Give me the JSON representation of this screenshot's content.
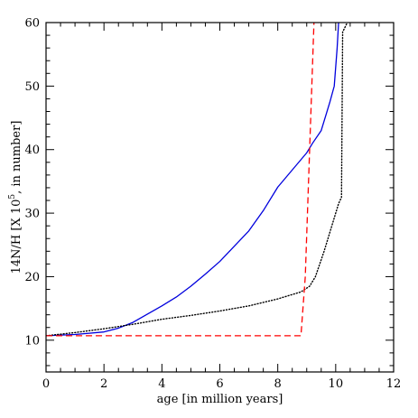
{
  "chart_data": {
    "type": "line",
    "xlabel": "age [in million years]",
    "ylabel": {
      "prefix": "14N/H [X 10",
      "superscript": "5",
      "suffix": ", in number]"
    },
    "xlim": [
      0,
      12
    ],
    "ylim": [
      5,
      60
    ],
    "x_ticks": [
      0,
      2,
      4,
      6,
      8,
      10,
      12
    ],
    "y_ticks": [
      10,
      20,
      30,
      40,
      50,
      60
    ],
    "grid": false,
    "series": [
      {
        "color": "#0000dd",
        "style": "solid",
        "points": [
          [
            0,
            10.7
          ],
          [
            1.0,
            10.9
          ],
          [
            2.0,
            11.3
          ],
          [
            2.5,
            11.9
          ],
          [
            3.0,
            12.8
          ],
          [
            3.5,
            14.1
          ],
          [
            4.0,
            15.4
          ],
          [
            4.5,
            16.8
          ],
          [
            5.0,
            18.5
          ],
          [
            5.5,
            20.4
          ],
          [
            6.0,
            22.4
          ],
          [
            6.5,
            24.8
          ],
          [
            7.0,
            27.2
          ],
          [
            7.5,
            30.4
          ],
          [
            8.0,
            34.1
          ],
          [
            8.5,
            36.8
          ],
          [
            9.0,
            39.5
          ],
          [
            9.2,
            41.0
          ],
          [
            9.5,
            43.0
          ],
          [
            9.8,
            47.5
          ],
          [
            9.95,
            50.0
          ],
          [
            10.05,
            56.0
          ],
          [
            10.1,
            60.0
          ]
        ]
      },
      {
        "color": "#000000",
        "style": "dotted",
        "points": [
          [
            0,
            10.7
          ],
          [
            1.0,
            11.2
          ],
          [
            2.0,
            11.8
          ],
          [
            3.0,
            12.5
          ],
          [
            4.0,
            13.3
          ],
          [
            5.0,
            13.9
          ],
          [
            6.0,
            14.6
          ],
          [
            7.0,
            15.4
          ],
          [
            8.0,
            16.5
          ],
          [
            8.8,
            17.6
          ],
          [
            9.1,
            18.5
          ],
          [
            9.3,
            20.0
          ],
          [
            9.6,
            24.0
          ],
          [
            9.9,
            28.5
          ],
          [
            10.1,
            31.5
          ],
          [
            10.2,
            32.5
          ],
          [
            10.22,
            45.0
          ],
          [
            10.24,
            58.5
          ],
          [
            10.4,
            60.0
          ]
        ]
      },
      {
        "color": "#ff0000",
        "style": "dashed",
        "points": [
          [
            0,
            10.7
          ],
          [
            8.8,
            10.7
          ],
          [
            8.95,
            20.0
          ],
          [
            9.1,
            40.0
          ],
          [
            9.25,
            60.0
          ]
        ]
      }
    ]
  }
}
